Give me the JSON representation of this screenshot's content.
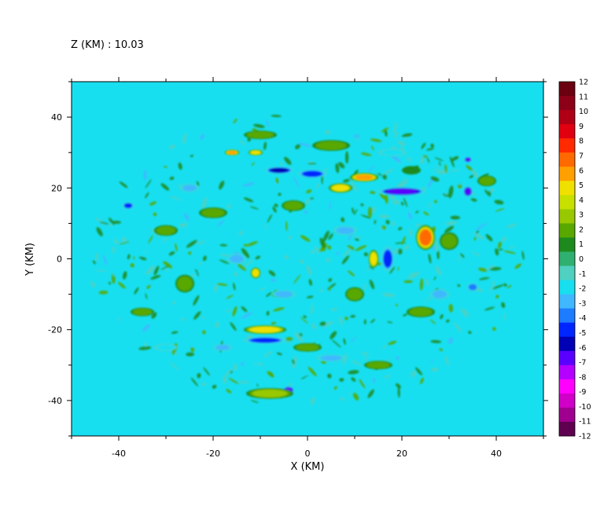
{
  "chart_data": {
    "type": "heatmap",
    "title": "Z (KM) : 10.03",
    "xlabel": "X (KM)",
    "ylabel": "Y (KM)",
    "xlim": [
      -50,
      50
    ],
    "ylim": [
      -50,
      50
    ],
    "x_ticks": [
      -40,
      -20,
      0,
      20,
      40
    ],
    "y_ticks": [
      -40,
      -20,
      0,
      20,
      40
    ],
    "grid": false,
    "legend": "right colorbar",
    "colorbar": {
      "levels": [
        12,
        11,
        10,
        9,
        8,
        7,
        6,
        5,
        4,
        3,
        2,
        1,
        0,
        -1,
        -2,
        -3,
        -4,
        -5,
        -6,
        -7,
        -8,
        -9,
        -10,
        -11,
        -12
      ],
      "labels": [
        "12",
        "11",
        "10",
        "9",
        "8",
        "7",
        "6",
        "5",
        "4",
        "3",
        "2",
        "1",
        "0",
        "-1",
        "-2",
        "-3",
        "-4",
        "-5",
        "-6",
        "-7",
        "-8",
        "-9",
        "-10",
        "-11",
        "-12"
      ],
      "colors": [
        "#6a0010",
        "#8c0018",
        "#b00015",
        "#e00010",
        "#ff2a00",
        "#ff6a00",
        "#ffa000",
        "#f0e000",
        "#c8e000",
        "#98c800",
        "#58a800",
        "#1e8a1e",
        "#30b070",
        "#50d0c0",
        "#18dff0",
        "#40b8ff",
        "#1e7cff",
        "#0026ff",
        "#0000b4",
        "#5a00ff",
        "#b400ff",
        "#ff00ff",
        "#d000c8",
        "#a00090",
        "#600050"
      ]
    },
    "background_value": 0,
    "features": [
      {
        "x": 25,
        "y": 6,
        "rx": 2.0,
        "ry": 3.5,
        "value": 7
      },
      {
        "x": 12,
        "y": 23,
        "rx": 3.0,
        "ry": 1.2,
        "value": 6
      },
      {
        "x": 7,
        "y": 20,
        "rx": 2.5,
        "ry": 1.3,
        "value": 5
      },
      {
        "x": -9,
        "y": -20,
        "rx": 4.5,
        "ry": 1.2,
        "value": 5
      },
      {
        "x": -16,
        "y": 30,
        "rx": 1.5,
        "ry": 0.8,
        "value": 6
      },
      {
        "x": -11,
        "y": 30,
        "rx": 1.5,
        "ry": 0.8,
        "value": 5
      },
      {
        "x": 14,
        "y": 0,
        "rx": 1.0,
        "ry": 2.5,
        "value": 5
      },
      {
        "x": -11,
        "y": -4,
        "rx": 1.0,
        "ry": 1.5,
        "value": 5
      },
      {
        "x": 1,
        "y": 24,
        "rx": 3.0,
        "ry": 1.2,
        "value": -5
      },
      {
        "x": 20,
        "y": 19,
        "rx": 5.0,
        "ry": 1.2,
        "value": -7
      },
      {
        "x": -6,
        "y": 25,
        "rx": 3.0,
        "ry": 1.0,
        "value": -6
      },
      {
        "x": 17,
        "y": 0,
        "rx": 1.3,
        "ry": 3.5,
        "value": -5
      },
      {
        "x": -9,
        "y": -23,
        "rx": 4.5,
        "ry": 1.0,
        "value": -5
      },
      {
        "x": -4,
        "y": -37,
        "rx": 1.2,
        "ry": 1.0,
        "value": -7
      },
      {
        "x": 34,
        "y": 19,
        "rx": 1.0,
        "ry": 1.5,
        "value": -7
      },
      {
        "x": 34,
        "y": 28,
        "rx": 0.8,
        "ry": 0.8,
        "value": -7
      },
      {
        "x": -38,
        "y": 15,
        "rx": 1.2,
        "ry": 1.0,
        "value": -5
      },
      {
        "x": -3,
        "y": 15,
        "rx": 2.5,
        "ry": 1.5,
        "value": 2
      },
      {
        "x": -20,
        "y": 13,
        "rx": 3.0,
        "ry": 1.5,
        "value": 2
      },
      {
        "x": 5,
        "y": 32,
        "rx": 4.0,
        "ry": 1.5,
        "value": 2
      },
      {
        "x": -10,
        "y": 35,
        "rx": 3.5,
        "ry": 1.2,
        "value": 2
      },
      {
        "x": -30,
        "y": 8,
        "rx": 2.5,
        "ry": 1.5,
        "value": 2
      },
      {
        "x": -26,
        "y": -7,
        "rx": 2.0,
        "ry": 2.5,
        "value": 2
      },
      {
        "x": 24,
        "y": -15,
        "rx": 3.0,
        "ry": 1.5,
        "value": 2
      },
      {
        "x": -8,
        "y": -38,
        "rx": 5.0,
        "ry": 1.5,
        "value": 3
      },
      {
        "x": 10,
        "y": -10,
        "rx": 2.0,
        "ry": 2.0,
        "value": 2
      },
      {
        "x": 30,
        "y": 5,
        "rx": 2.0,
        "ry": 2.5,
        "value": 2
      },
      {
        "x": 0,
        "y": -25,
        "rx": 3.0,
        "ry": 1.2,
        "value": 2
      },
      {
        "x": -35,
        "y": -15,
        "rx": 2.5,
        "ry": 1.2,
        "value": 2
      },
      {
        "x": 15,
        "y": -30,
        "rx": 3.0,
        "ry": 1.2,
        "value": 2
      },
      {
        "x": -15,
        "y": 0,
        "rx": 2.0,
        "ry": 1.5,
        "value": -3
      },
      {
        "x": 8,
        "y": 8,
        "rx": 2.5,
        "ry": 1.3,
        "value": -3
      },
      {
        "x": -25,
        "y": 20,
        "rx": 2.0,
        "ry": 1.2,
        "value": -3
      },
      {
        "x": 28,
        "y": -10,
        "rx": 2.0,
        "ry": 1.5,
        "value": -3
      },
      {
        "x": -5,
        "y": -10,
        "rx": 2.5,
        "ry": 1.2,
        "value": -3
      },
      {
        "x": 5,
        "y": -28,
        "rx": 3.0,
        "ry": 1.0,
        "value": -3
      },
      {
        "x": -30,
        "y": -25,
        "rx": 2.5,
        "ry": 1.0,
        "value": -2
      },
      {
        "x": 35,
        "y": -8,
        "rx": 1.2,
        "ry": 1.2,
        "value": -4
      },
      {
        "x": -18,
        "y": -25,
        "rx": 2.0,
        "ry": 1.0,
        "value": -3
      },
      {
        "x": 18,
        "y": 30,
        "rx": 3.0,
        "ry": 1.0,
        "value": -2
      },
      {
        "x": 38,
        "y": 22,
        "rx": 2.0,
        "ry": 1.5,
        "value": 2
      },
      {
        "x": 22,
        "y": 25,
        "rx": 2.0,
        "ry": 1.2,
        "value": 1
      }
    ]
  }
}
